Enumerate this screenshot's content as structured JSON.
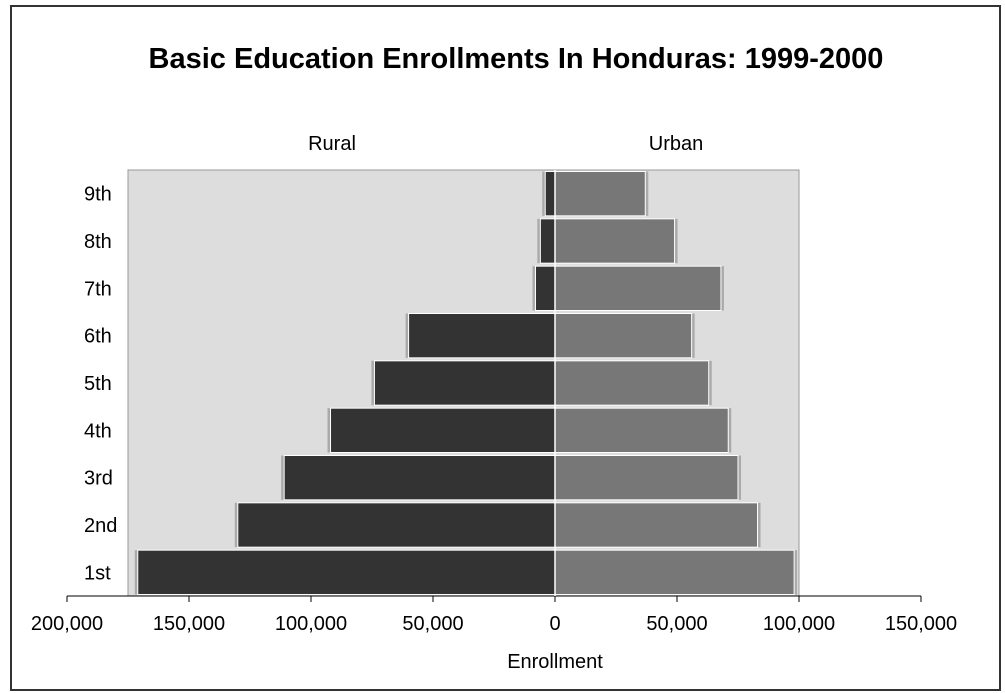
{
  "chart_data": {
    "type": "bar",
    "orientation": "horizontal-diverging",
    "title": "Basic Education Enrollments In Honduras: 1999-2000",
    "xlabel": "Enrollment",
    "ylabel": "",
    "categories": [
      "1st",
      "2nd",
      "3rd",
      "4th",
      "5th",
      "6th",
      "7th",
      "8th",
      "9th"
    ],
    "series": [
      {
        "name": "Rural",
        "side": "left",
        "color": "#333333",
        "values": [
          171000,
          130000,
          111000,
          92000,
          74000,
          60000,
          8000,
          6000,
          4000
        ]
      },
      {
        "name": "Urban",
        "side": "right",
        "color": "#777777",
        "values": [
          98000,
          83000,
          75000,
          71000,
          63000,
          56000,
          68000,
          49000,
          37000
        ]
      }
    ],
    "xlim": [
      -200000,
      150000
    ],
    "x_ticks": [
      -200000,
      -150000,
      -100000,
      -50000,
      0,
      50000,
      100000,
      150000
    ],
    "x_tick_labels": [
      "200,000",
      "150,000",
      "100,000",
      "50,000",
      "0",
      "50,000",
      "100,000",
      "150,000"
    ],
    "plot_bg_color": "#dddddd",
    "grid": false,
    "legend": "none"
  }
}
